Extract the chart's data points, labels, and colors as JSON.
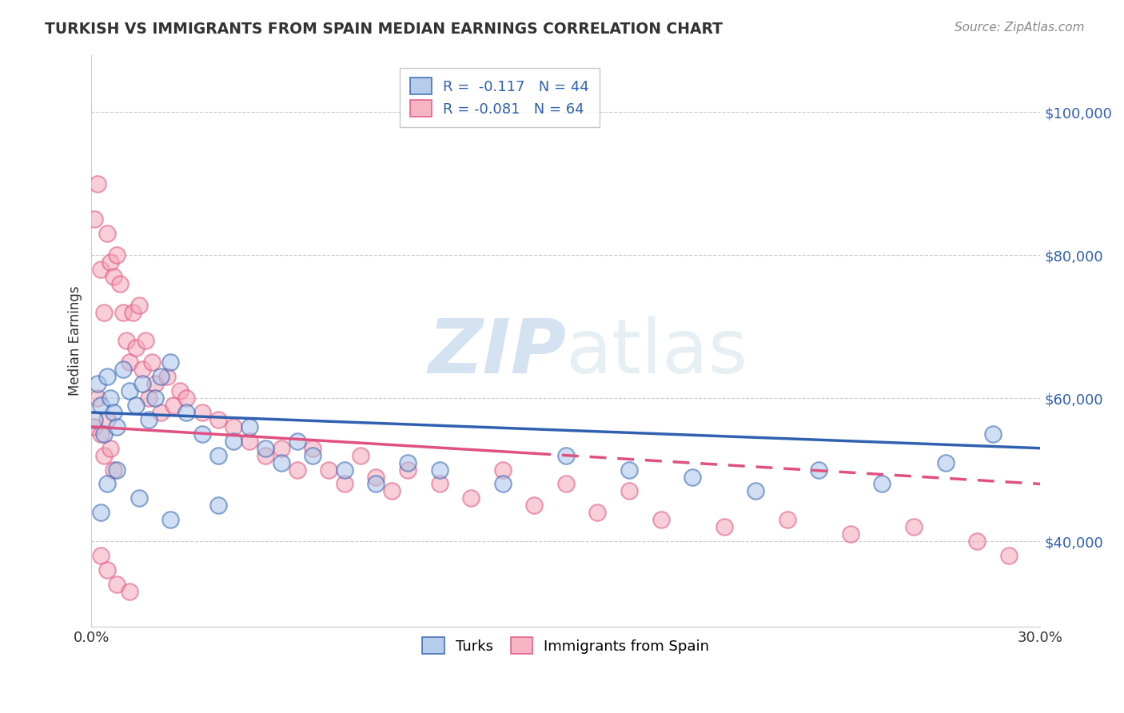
{
  "title": "TURKISH VS IMMIGRANTS FROM SPAIN MEDIAN EARNINGS CORRELATION CHART",
  "source_text": "Source: ZipAtlas.com",
  "ylabel": "Median Earnings",
  "x_min": 0.0,
  "x_max": 0.3,
  "y_min": 28000,
  "y_max": 108000,
  "yticks": [
    40000,
    60000,
    80000,
    100000
  ],
  "ytick_labels": [
    "$40,000",
    "$60,000",
    "$80,000",
    "$100,000"
  ],
  "watermark_zip": "ZIP",
  "watermark_atlas": "atlas",
  "legend_r1": "R =  -0.117",
  "legend_n1": "N = 44",
  "legend_r2": "R = -0.081",
  "legend_n2": "N = 64",
  "blue_fill": "#a8c4e8",
  "pink_fill": "#f4a8b8",
  "line_blue": "#3060b0",
  "line_pink": "#e05080",
  "turks_x": [
    0.001,
    0.002,
    0.003,
    0.004,
    0.005,
    0.006,
    0.007,
    0.008,
    0.01,
    0.012,
    0.014,
    0.016,
    0.018,
    0.02,
    0.022,
    0.025,
    0.03,
    0.035,
    0.04,
    0.045,
    0.05,
    0.055,
    0.06,
    0.065,
    0.07,
    0.08,
    0.09,
    0.1,
    0.11,
    0.13,
    0.15,
    0.17,
    0.19,
    0.21,
    0.23,
    0.25,
    0.27,
    0.285,
    0.003,
    0.005,
    0.008,
    0.015,
    0.025,
    0.04
  ],
  "turks_y": [
    57000,
    62000,
    59000,
    55000,
    63000,
    60000,
    58000,
    56000,
    64000,
    61000,
    59000,
    62000,
    57000,
    60000,
    63000,
    65000,
    58000,
    55000,
    52000,
    54000,
    56000,
    53000,
    51000,
    54000,
    52000,
    50000,
    48000,
    51000,
    50000,
    48000,
    52000,
    50000,
    49000,
    47000,
    50000,
    48000,
    51000,
    55000,
    44000,
    48000,
    50000,
    46000,
    43000,
    45000
  ],
  "spain_x": [
    0.001,
    0.001,
    0.002,
    0.002,
    0.003,
    0.003,
    0.004,
    0.004,
    0.005,
    0.005,
    0.006,
    0.006,
    0.007,
    0.007,
    0.008,
    0.009,
    0.01,
    0.011,
    0.012,
    0.013,
    0.014,
    0.015,
    0.016,
    0.017,
    0.018,
    0.019,
    0.02,
    0.022,
    0.024,
    0.026,
    0.028,
    0.03,
    0.035,
    0.04,
    0.045,
    0.05,
    0.055,
    0.06,
    0.065,
    0.07,
    0.075,
    0.08,
    0.085,
    0.09,
    0.095,
    0.1,
    0.11,
    0.12,
    0.13,
    0.14,
    0.15,
    0.16,
    0.17,
    0.18,
    0.2,
    0.22,
    0.24,
    0.26,
    0.28,
    0.29,
    0.003,
    0.005,
    0.008,
    0.012
  ],
  "spain_y": [
    85000,
    56000,
    90000,
    60000,
    78000,
    55000,
    72000,
    52000,
    83000,
    57000,
    79000,
    53000,
    77000,
    50000,
    80000,
    76000,
    72000,
    68000,
    65000,
    72000,
    67000,
    73000,
    64000,
    68000,
    60000,
    65000,
    62000,
    58000,
    63000,
    59000,
    61000,
    60000,
    58000,
    57000,
    56000,
    54000,
    52000,
    53000,
    50000,
    53000,
    50000,
    48000,
    52000,
    49000,
    47000,
    50000,
    48000,
    46000,
    50000,
    45000,
    48000,
    44000,
    47000,
    43000,
    42000,
    43000,
    41000,
    42000,
    40000,
    38000,
    38000,
    36000,
    34000,
    33000
  ]
}
